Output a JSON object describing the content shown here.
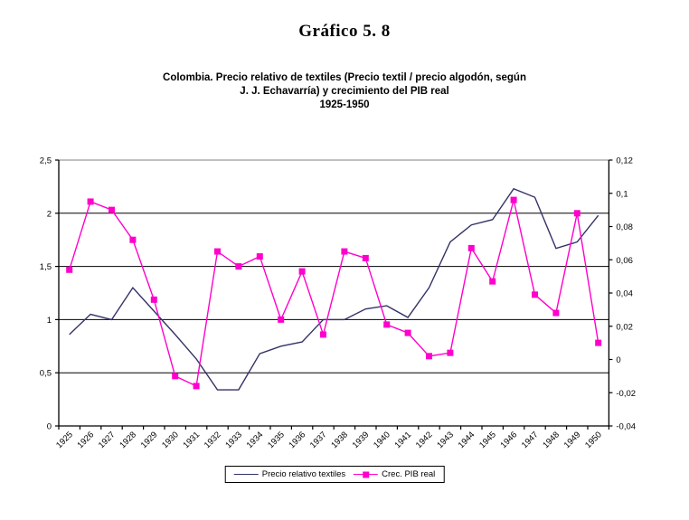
{
  "title": "Gráfico 5. 8",
  "subtitle": {
    "line1": "Colombia. Precio relativo de textiles (Precio textil / precio algodón, según",
    "line2": "J. J. Echavarría) y crecimiento del PIB real",
    "line3": "1925-1950"
  },
  "chart_data": {
    "type": "line",
    "title": "Gráfico 5. 8",
    "subtitle": "Colombia. Precio relativo de textiles (Precio textil / precio algodón, según J. J. Echavarría) y crecimiento del PIB real 1925-1950",
    "categories": [
      "1925",
      "1926",
      "1927",
      "1928",
      "1929",
      "1930",
      "1931",
      "1932",
      "1933",
      "1934",
      "1935",
      "1936",
      "1937",
      "1938",
      "1939",
      "1940",
      "1941",
      "1942",
      "1943",
      "1944",
      "1945",
      "1946",
      "1947",
      "1948",
      "1949",
      "1950"
    ],
    "series": [
      {
        "name": "Precio relativo textiles",
        "axis": "left",
        "color": "#333366",
        "marker": "none",
        "values": [
          0.86,
          1.05,
          1.0,
          1.3,
          1.08,
          0.86,
          0.63,
          0.34,
          0.34,
          0.68,
          0.75,
          0.79,
          1.0,
          1.0,
          1.1,
          1.13,
          1.02,
          1.3,
          1.73,
          1.89,
          1.94,
          2.23,
          2.15,
          1.67,
          1.73,
          1.98
        ]
      },
      {
        "name": "Crec. PIB real",
        "axis": "right",
        "color": "#ff00cc",
        "marker": "square",
        "values": [
          0.054,
          0.095,
          0.09,
          0.072,
          0.036,
          -0.01,
          -0.016,
          0.065,
          0.056,
          0.062,
          0.024,
          0.053,
          0.015,
          0.065,
          0.061,
          0.021,
          0.016,
          0.002,
          0.004,
          0.067,
          0.047,
          0.096,
          0.039,
          0.028,
          0.088,
          0.01
        ]
      }
    ],
    "left_axis": {
      "range": [
        0,
        2.5
      ],
      "tick_values": [
        0,
        0.5,
        1,
        1.5,
        2,
        2.5
      ],
      "tick_labels": [
        "0",
        "0,5",
        "1",
        "1,5",
        "2",
        "2,5"
      ]
    },
    "right_axis": {
      "range": [
        -0.04,
        0.12
      ],
      "tick_values": [
        -0.04,
        -0.02,
        0,
        0.02,
        0.04,
        0.06,
        0.08,
        0.1,
        0.12
      ],
      "tick_labels": [
        "-0,04",
        "-0,02",
        "0",
        "0,02",
        "0,04",
        "0,06",
        "0,08",
        "0,1",
        "0,12"
      ]
    },
    "grid": {
      "on": true,
      "line_color": "#000000",
      "top_line_color": "#808080",
      "axis_color": "#000000"
    },
    "legend_position": "bottom",
    "x_label_rotation_deg": -45
  }
}
